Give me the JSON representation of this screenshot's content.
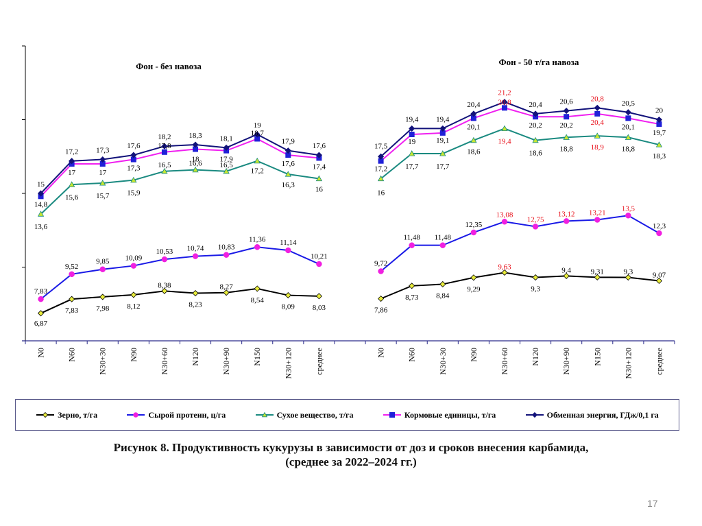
{
  "chart_data": {
    "type": "line",
    "title": "",
    "xlabel": "",
    "ylabel": "",
    "ylim": [
      5,
      25
    ],
    "yticks": [
      5,
      10,
      15,
      20,
      25
    ],
    "y_tick_labels_visible": false,
    "grid": false,
    "legend_position": "bottom",
    "panels": [
      {
        "title": "Фон - без навоза",
        "categories": [
          "N0",
          "N60",
          "N30+30",
          "N90",
          "N30+60",
          "N120",
          "N30+90",
          "N150",
          "N30+120",
          "среднее"
        ],
        "series": [
          {
            "key": "grain",
            "name": "Зерно, т/га",
            "values": [
              6.87,
              7.83,
              7.98,
              8.12,
              8.38,
              8.23,
              8.27,
              8.54,
              8.09,
              8.03
            ],
            "labels": [
              "6,87",
              "7,83",
              "7,98",
              "8,12",
              "8,38",
              "8,23",
              "8,27",
              "8,54",
              "8,09",
              "8,03"
            ],
            "highlight": []
          },
          {
            "key": "protein",
            "name": "Сырой протеин, ц/га",
            "values": [
              7.83,
              9.52,
              9.85,
              10.09,
              10.53,
              10.74,
              10.83,
              11.36,
              11.14,
              10.21
            ],
            "labels": [
              "7,83",
              "9,52",
              "9,85",
              "10,09",
              "10,53",
              "10,74",
              "10,83",
              "11,36",
              "11,14",
              "10,21"
            ],
            "highlight": []
          },
          {
            "key": "dry",
            "name": "Сухое вещество, т/га",
            "values": [
              13.6,
              15.6,
              15.7,
              15.9,
              16.5,
              16.6,
              16.5,
              17.2,
              16.3,
              16.0
            ],
            "labels": [
              "13,6",
              "15,6",
              "15,7",
              "15,9",
              "16,5",
              "16,6",
              "16,5",
              "17,2",
              "16,3",
              "16"
            ],
            "highlight": []
          },
          {
            "key": "feed",
            "name": "Кормовые единицы, т/га",
            "values": [
              14.8,
              17.0,
              17.0,
              17.3,
              17.8,
              18.0,
              17.9,
              18.7,
              17.6,
              17.4
            ],
            "labels": [
              "14,8",
              "17",
              "17",
              "17,3",
              "17,8",
              "18",
              "17,9",
              "18,7",
              "17,6",
              "17,4"
            ],
            "highlight": []
          },
          {
            "key": "energy",
            "name": "Обменная энергия, ГДж/0,1 га",
            "values": [
              15.0,
              17.2,
              17.3,
              17.6,
              18.2,
              18.3,
              18.1,
              19.0,
              17.9,
              17.6
            ],
            "labels": [
              "15",
              "17,2",
              "17,3",
              "17,6",
              "18,2",
              "18,3",
              "18,1",
              "19",
              "17,9",
              "17,6"
            ],
            "highlight": []
          }
        ]
      },
      {
        "title": "Фон - 50 т/га навоза",
        "categories": [
          "N0",
          "N60",
          "N30+30",
          "N90",
          "N30+60",
          "N120",
          "N30+90",
          "N150",
          "N30+120",
          "среднее"
        ],
        "series": [
          {
            "key": "grain",
            "name": "Зерно, т/га",
            "values": [
              7.86,
              8.73,
              8.84,
              9.29,
              9.63,
              9.3,
              9.4,
              9.31,
              9.3,
              9.07
            ],
            "labels": [
              "7,86",
              "8,73",
              "8,84",
              "9,29",
              "9,63",
              "9,3",
              "9,4",
              "9,31",
              "9,3",
              "9,07"
            ],
            "highlight": [
              4
            ]
          },
          {
            "key": "protein",
            "name": "Сырой протеин, ц/га",
            "values": [
              9.72,
              11.48,
              11.48,
              12.35,
              13.08,
              12.75,
              13.12,
              13.21,
              13.5,
              12.3
            ],
            "labels": [
              "9,72",
              "11,48",
              "11,48",
              "12,35",
              "13,08",
              "12,75",
              "13,12",
              "13,21",
              "13,5",
              "12,3"
            ],
            "highlight": [
              4,
              5,
              6,
              7,
              8
            ]
          },
          {
            "key": "dry",
            "name": "Сухое вещество, т/га",
            "values": [
              16.0,
              17.7,
              17.7,
              18.6,
              19.4,
              18.6,
              18.8,
              18.9,
              18.8,
              18.3
            ],
            "labels": [
              "16",
              "17,7",
              "17,7",
              "18,6",
              "19,4",
              "18,6",
              "18,8",
              "18,9",
              "18,8",
              "18,3"
            ],
            "highlight": [
              4,
              7
            ]
          },
          {
            "key": "feed",
            "name": "Кормовые единицы, т/га",
            "values": [
              17.2,
              19.0,
              19.1,
              20.1,
              20.8,
              20.2,
              20.2,
              20.4,
              20.1,
              19.7
            ],
            "labels": [
              "17,2",
              "19",
              "19,1",
              "20,1",
              "20,8",
              "20,2",
              "20,2",
              "20,4",
              "20,1",
              "19,7"
            ],
            "highlight": [
              4,
              7
            ]
          },
          {
            "key": "energy",
            "name": "Обменная энергия, ГДж/0,1 га",
            "values": [
              17.5,
              19.4,
              19.4,
              20.4,
              21.2,
              20.4,
              20.6,
              20.8,
              20.5,
              20.0
            ],
            "labels": [
              "17,5",
              "19,4",
              "19,4",
              "20,4",
              "21,2",
              "20,4",
              "20,6",
              "20,8",
              "20,5",
              "20"
            ],
            "highlight": [
              4,
              7
            ]
          }
        ]
      }
    ],
    "legend": [
      {
        "key": "grain",
        "label": "Зерно, т/га",
        "line_color": "#000000",
        "marker": "diamond",
        "marker_color": "#e8ec3c"
      },
      {
        "key": "protein",
        "label": "Сырой протеин, ц/га",
        "line_color": "#1a1ae6",
        "marker": "circle",
        "marker_color": "#f020e0"
      },
      {
        "key": "dry",
        "label": "Сухое вещество, т/га",
        "line_color": "#1a8a80",
        "marker": "triangle",
        "marker_color": "#c8e830"
      },
      {
        "key": "feed",
        "label": "Кормовые единицы, т/га",
        "line_color": "#f020f0",
        "marker": "square",
        "marker_color": "#2020d8"
      },
      {
        "key": "energy",
        "label": "Обменная энергия, ГДж/0,1 га",
        "line_color": "#12127a",
        "marker": "diamond",
        "marker_color": "#12127a"
      }
    ],
    "label_colors": {
      "normal": "#000000",
      "highlight": "#e8101a"
    }
  },
  "caption": {
    "line1": "Рисунок 8. Продуктивность кукурузы в зависимости от доз и сроков внесения карбамида,",
    "line2": "(среднее за 2022–2024 гг.)"
  },
  "page_number": "17"
}
